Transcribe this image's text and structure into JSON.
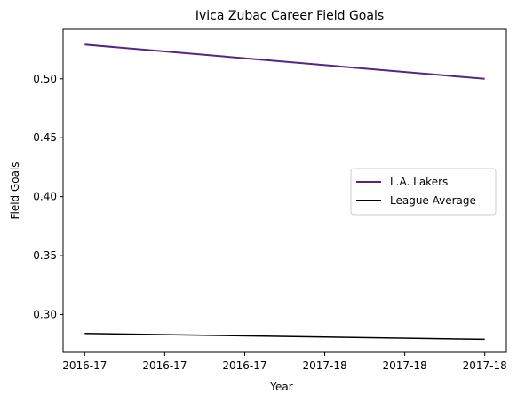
{
  "chart_data": {
    "type": "line",
    "title": "Ivica Zubac Career Field Goals",
    "xlabel": "Year",
    "ylabel": "Field Goals",
    "categories": [
      "2016-17",
      "2016-17",
      "2016-17",
      "2017-18",
      "2017-18",
      "2017-18"
    ],
    "x": [
      0,
      1,
      2,
      3,
      4,
      5
    ],
    "ylim": [
      0.268,
      0.542
    ],
    "yticks": [
      0.3,
      0.35,
      0.4,
      0.45,
      0.5
    ],
    "ytick_labels": [
      "0.30",
      "0.35",
      "0.40",
      "0.45",
      "0.50"
    ],
    "grid": false,
    "legend_position": "center-right",
    "series": [
      {
        "name": "L.A. Lakers",
        "color": "#552583",
        "values_at_x": [
          [
            0,
            0.529
          ],
          [
            5,
            0.5
          ]
        ]
      },
      {
        "name": "League Average",
        "color": "#000000",
        "values_at_x": [
          [
            0,
            0.284
          ],
          [
            5,
            0.279
          ]
        ]
      }
    ]
  }
}
